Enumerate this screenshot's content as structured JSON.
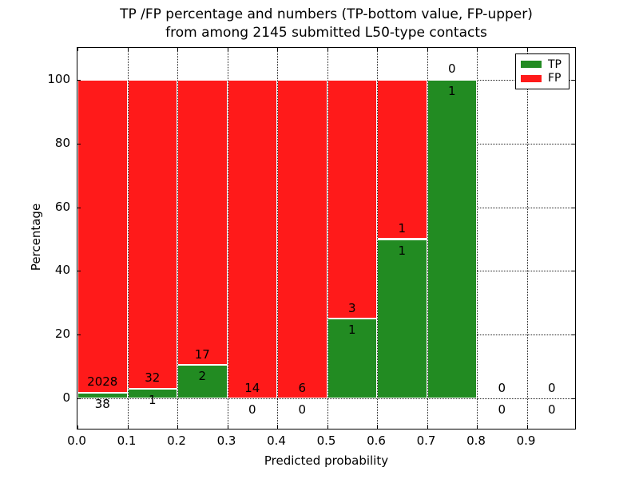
{
  "figure": {
    "title_line1": "TP /FP percentage and numbers (TP-bottom value, FP-upper)",
    "title_line2": "from among 2145 submitted L50-type contacts"
  },
  "legend": {
    "items": [
      {
        "label": "TP",
        "color": "#228b22"
      },
      {
        "label": "FP",
        "color": "#ff1a1a"
      }
    ]
  },
  "chart_data": {
    "type": "bar",
    "stacked": true,
    "title": "TP /FP percentage and numbers (TP-bottom value, FP-upper) from among 2145 submitted L50-type contacts",
    "xlabel": "Predicted probability",
    "ylabel": "Percentage",
    "xlim": [
      0.0,
      1.0
    ],
    "ylim": [
      -10,
      110
    ],
    "grid": "dotted",
    "legend_position": "upper right",
    "total_contacts": 2145,
    "series": [
      {
        "name": "TP",
        "color": "#228b22",
        "position": "bottom"
      },
      {
        "name": "FP",
        "color": "#ff1a1a",
        "position": "upper"
      }
    ],
    "x_ticks": [
      {
        "value": 0.0,
        "label": "0.0"
      },
      {
        "value": 0.1,
        "label": "0.1"
      },
      {
        "value": 0.2,
        "label": "0.2"
      },
      {
        "value": 0.3,
        "label": "0.3"
      },
      {
        "value": 0.4,
        "label": "0.4"
      },
      {
        "value": 0.5,
        "label": "0.5"
      },
      {
        "value": 0.6,
        "label": "0.6"
      },
      {
        "value": 0.7,
        "label": "0.7"
      },
      {
        "value": 0.8,
        "label": "0.8"
      },
      {
        "value": 0.9,
        "label": "0.9"
      }
    ],
    "y_ticks": [
      {
        "value": 0,
        "label": "0"
      },
      {
        "value": 20,
        "label": "20"
      },
      {
        "value": 40,
        "label": "40"
      },
      {
        "value": 60,
        "label": "60"
      },
      {
        "value": 80,
        "label": "80"
      },
      {
        "value": 100,
        "label": "100"
      }
    ],
    "bins": [
      {
        "x0": 0.0,
        "x1": 0.1,
        "tp": 38,
        "fp": 2028,
        "tp_pct": 1.84
      },
      {
        "x0": 0.1,
        "x1": 0.2,
        "tp": 1,
        "fp": 32,
        "tp_pct": 3.03
      },
      {
        "x0": 0.2,
        "x1": 0.3,
        "tp": 2,
        "fp": 17,
        "tp_pct": 10.53
      },
      {
        "x0": 0.3,
        "x1": 0.4,
        "tp": 0,
        "fp": 14,
        "tp_pct": 0
      },
      {
        "x0": 0.4,
        "x1": 0.5,
        "tp": 0,
        "fp": 6,
        "tp_pct": 0
      },
      {
        "x0": 0.5,
        "x1": 0.6,
        "tp": 1,
        "fp": 3,
        "tp_pct": 25
      },
      {
        "x0": 0.6,
        "x1": 0.7,
        "tp": 1,
        "fp": 1,
        "tp_pct": 50
      },
      {
        "x0": 0.7,
        "x1": 0.8,
        "tp": 1,
        "fp": 0,
        "tp_pct": 100
      },
      {
        "x0": 0.8,
        "x1": 0.9,
        "tp": 0,
        "fp": 0,
        "tp_pct": 0
      },
      {
        "x0": 0.9,
        "x1": 1.0,
        "tp": 0,
        "fp": 0,
        "tp_pct": 0
      }
    ]
  }
}
